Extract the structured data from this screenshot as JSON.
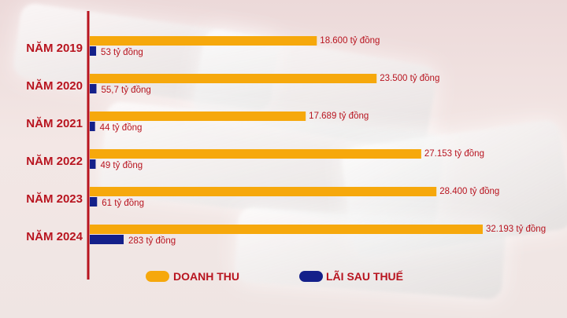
{
  "chart_data": {
    "type": "bar",
    "orientation": "horizontal",
    "categories": [
      "NĂM 2019",
      "NĂM 2020",
      "NĂM 2021",
      "NĂM 2022",
      "NĂM 2023",
      "NĂM 2024"
    ],
    "series": [
      {
        "name": "DOANH THU",
        "color": "#f6a80c",
        "values": [
          18600,
          23500,
          17689,
          27153,
          28400,
          32193
        ],
        "labels": [
          "18.600 tỷ đồng",
          "23.500 tỷ đồng",
          "17.689 tỷ đồng",
          "27.153 tỷ đồng",
          "28.400 tỷ đồng",
          "32.193 tỷ đồng"
        ]
      },
      {
        "name": "LÃI SAU THUẾ",
        "color": "#14208a",
        "values": [
          53,
          55.7,
          44,
          49,
          61,
          283
        ],
        "labels": [
          "53 tỷ đồng",
          "55,7 tỷ đồng",
          "44 tỷ đồng",
          "49 tỷ đồng",
          "61 tỷ đồng",
          "283 tỷ đồng"
        ]
      }
    ],
    "legend": "bottom",
    "grid": false,
    "axis_color": "#b8141f"
  }
}
